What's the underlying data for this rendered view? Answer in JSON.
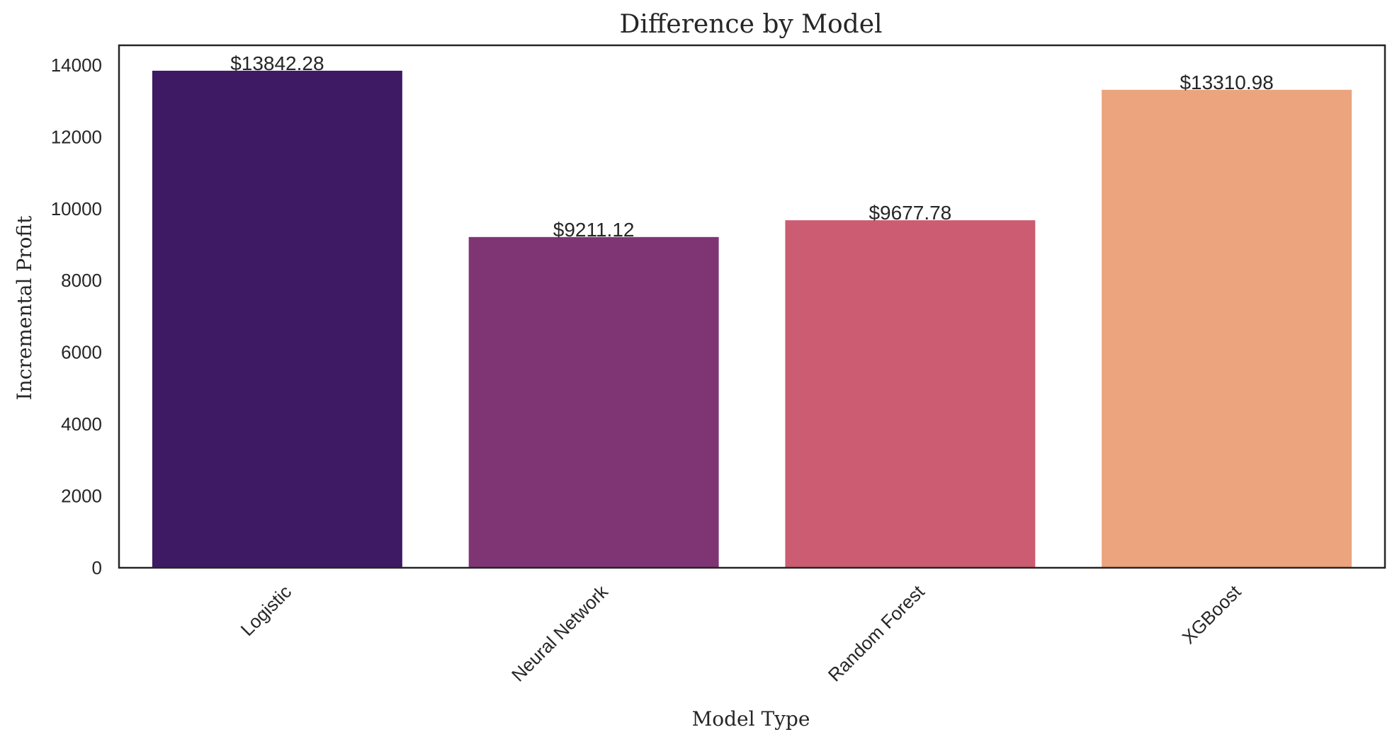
{
  "chart_data": {
    "type": "bar",
    "title": "Difference by Model",
    "xlabel": "Model Type",
    "ylabel": "Incremental Profit",
    "categories": [
      "Logistic",
      "Neural Network",
      "Random Forest",
      "XGBoost"
    ],
    "values": [
      13842.28,
      9211.12,
      9677.78,
      13310.98
    ],
    "data_labels": [
      "$13842.28",
      "$9211.12",
      "$9677.78",
      "$13310.98"
    ],
    "yticks": [
      0,
      2000,
      4000,
      6000,
      8000,
      10000,
      12000,
      14000
    ],
    "ytick_labels": [
      "0",
      "2000",
      "4000",
      "6000",
      "8000",
      "10000",
      "12000",
      "14000"
    ],
    "ylim": [
      0,
      14550
    ],
    "colors": [
      "#3d1a63",
      "#7f3574",
      "#cb5c72",
      "#eba47e"
    ],
    "grid": false,
    "legend": "none",
    "xtick_rotation_deg": 45
  }
}
